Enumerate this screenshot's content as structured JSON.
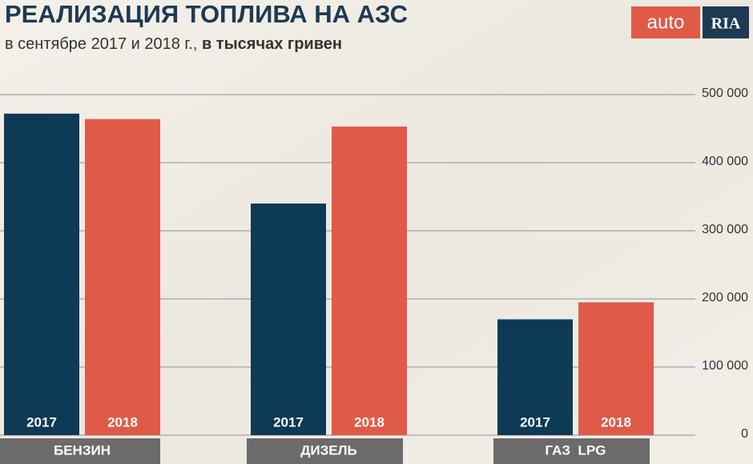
{
  "logo": {
    "left": "auto",
    "right": "RIA"
  },
  "chart_data": {
    "type": "bar",
    "title": "РЕАЛИЗАЦИЯ ТОПЛИВА НА АЗС",
    "subtitle": "в сентябре 2017 и 2018 г.,",
    "subtitle_bold": "в тысячах гривен",
    "categories": [
      "БЕНЗИН",
      "ДИЗЕЛЬ",
      "ГАЗ  LPG"
    ],
    "series": [
      {
        "name": "2017",
        "color": "#0d3a55",
        "values": [
          472000,
          340000,
          170000
        ]
      },
      {
        "name": "2018",
        "color": "#e05a48",
        "values": [
          464000,
          453000,
          195000
        ]
      }
    ],
    "ylim": [
      0,
      500000
    ],
    "yticks": [
      0,
      {
        "value": 100000,
        "label": "100 000"
      },
      {
        "value": 200000,
        "label": "200 000"
      },
      {
        "value": 300000,
        "label": "300 000"
      },
      {
        "value": 400000,
        "label": "400 000"
      },
      {
        "value": 500000,
        "label": "500 000"
      }
    ],
    "grid": true
  }
}
